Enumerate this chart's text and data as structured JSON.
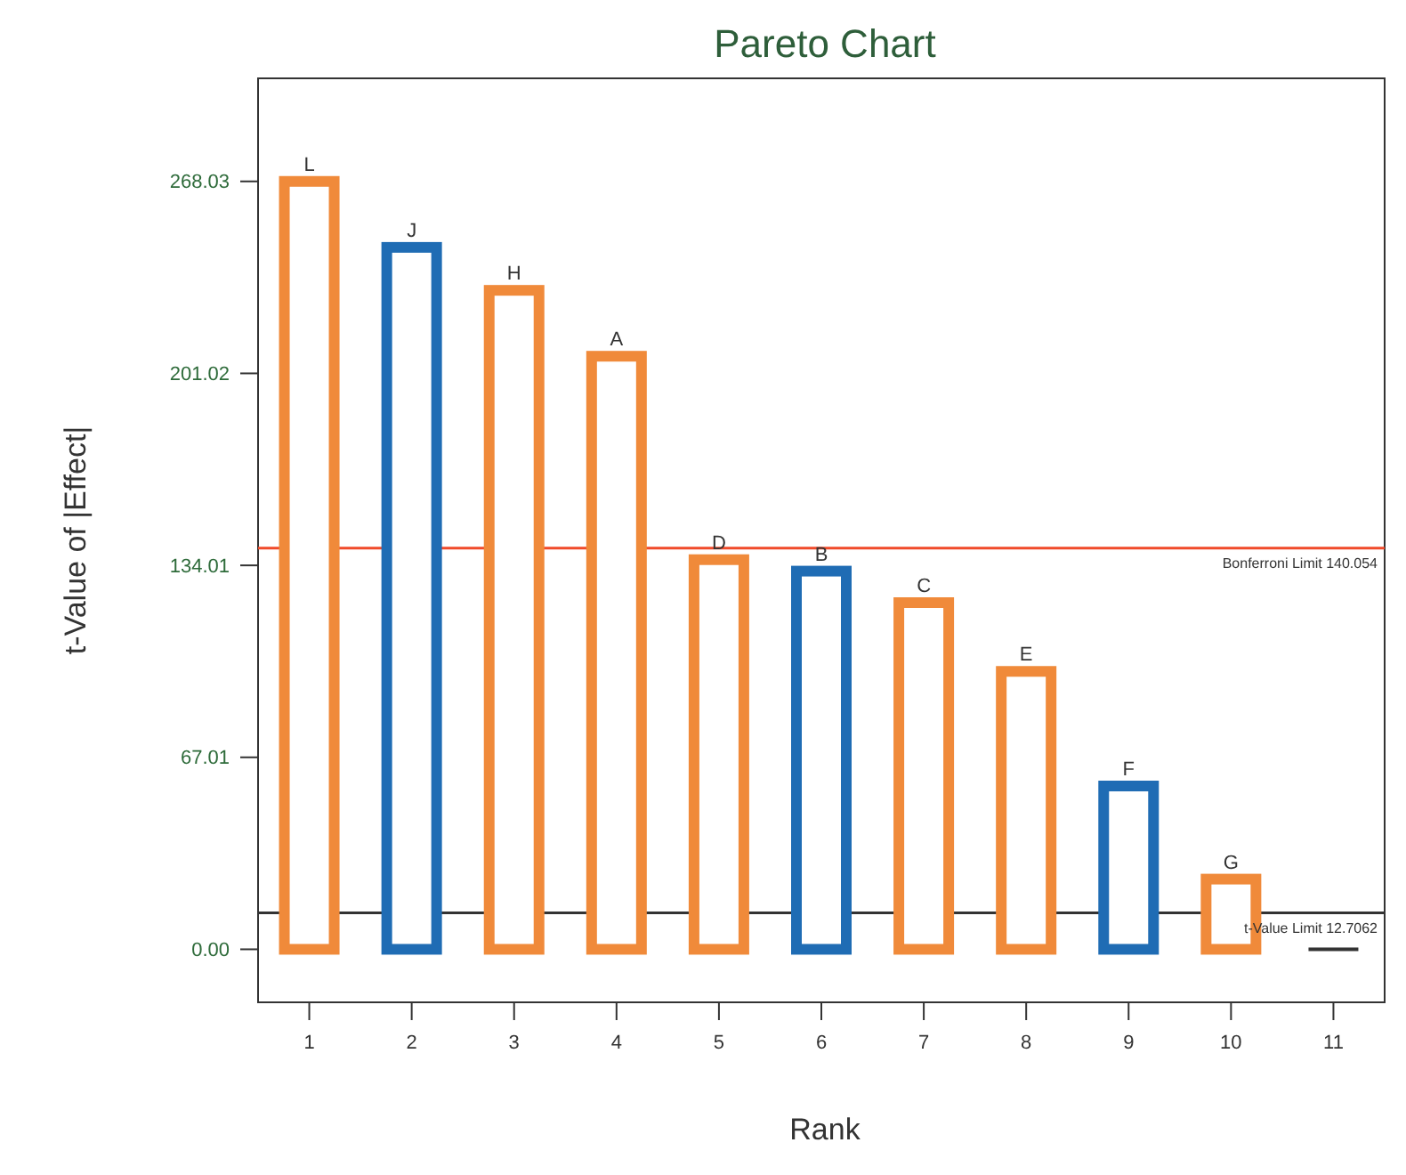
{
  "chart_data": {
    "type": "bar",
    "title": "Pareto Chart",
    "xlabel": "Rank",
    "ylabel": "t-Value of |Effect|",
    "categories": [
      "1",
      "2",
      "3",
      "4",
      "5",
      "6",
      "7",
      "8",
      "9",
      "10",
      "11"
    ],
    "values": [
      268.03,
      245,
      230,
      207,
      136,
      132,
      121,
      97,
      57,
      24.5,
      0
    ],
    "colors": [
      "#f08a3a",
      "#1f6cb4",
      "#f08a3a",
      "#f08a3a",
      "#f08a3a",
      "#1f6cb4",
      "#f08a3a",
      "#f08a3a",
      "#1f6cb4",
      "#f08a3a",
      "#333333"
    ],
    "ylim": [
      -18.5,
      304
    ],
    "yticks": [
      {
        "value": 0,
        "label": "0.00"
      },
      67.01,
      134.01,
      201.02,
      268.03
    ],
    "ref_lines": [
      {
        "axis": "y",
        "value": 140.054,
        "label": "Bonferroni Limit 140.054",
        "color": "#f04a2a"
      },
      {
        "axis": "y",
        "value": 12.7062,
        "label": "t-Value Limit 12.7062",
        "color": "#333333"
      }
    ],
    "annotations": [
      {
        "text": "L",
        "x": "1",
        "y": 268.03
      },
      {
        "text": "J",
        "x": "2",
        "y": 245
      },
      {
        "text": "H",
        "x": "3",
        "y": 230
      },
      {
        "text": "A",
        "x": "4",
        "y": 207
      },
      {
        "text": "D",
        "x": "5",
        "y": 136
      },
      {
        "text": "B",
        "x": "6",
        "y": 132
      },
      {
        "text": "C",
        "x": "7",
        "y": 121
      },
      {
        "text": "E",
        "x": "8",
        "y": 97
      },
      {
        "text": "F",
        "x": "9",
        "y": 57
      },
      {
        "text": "G",
        "x": "10",
        "y": 24.5
      }
    ]
  }
}
